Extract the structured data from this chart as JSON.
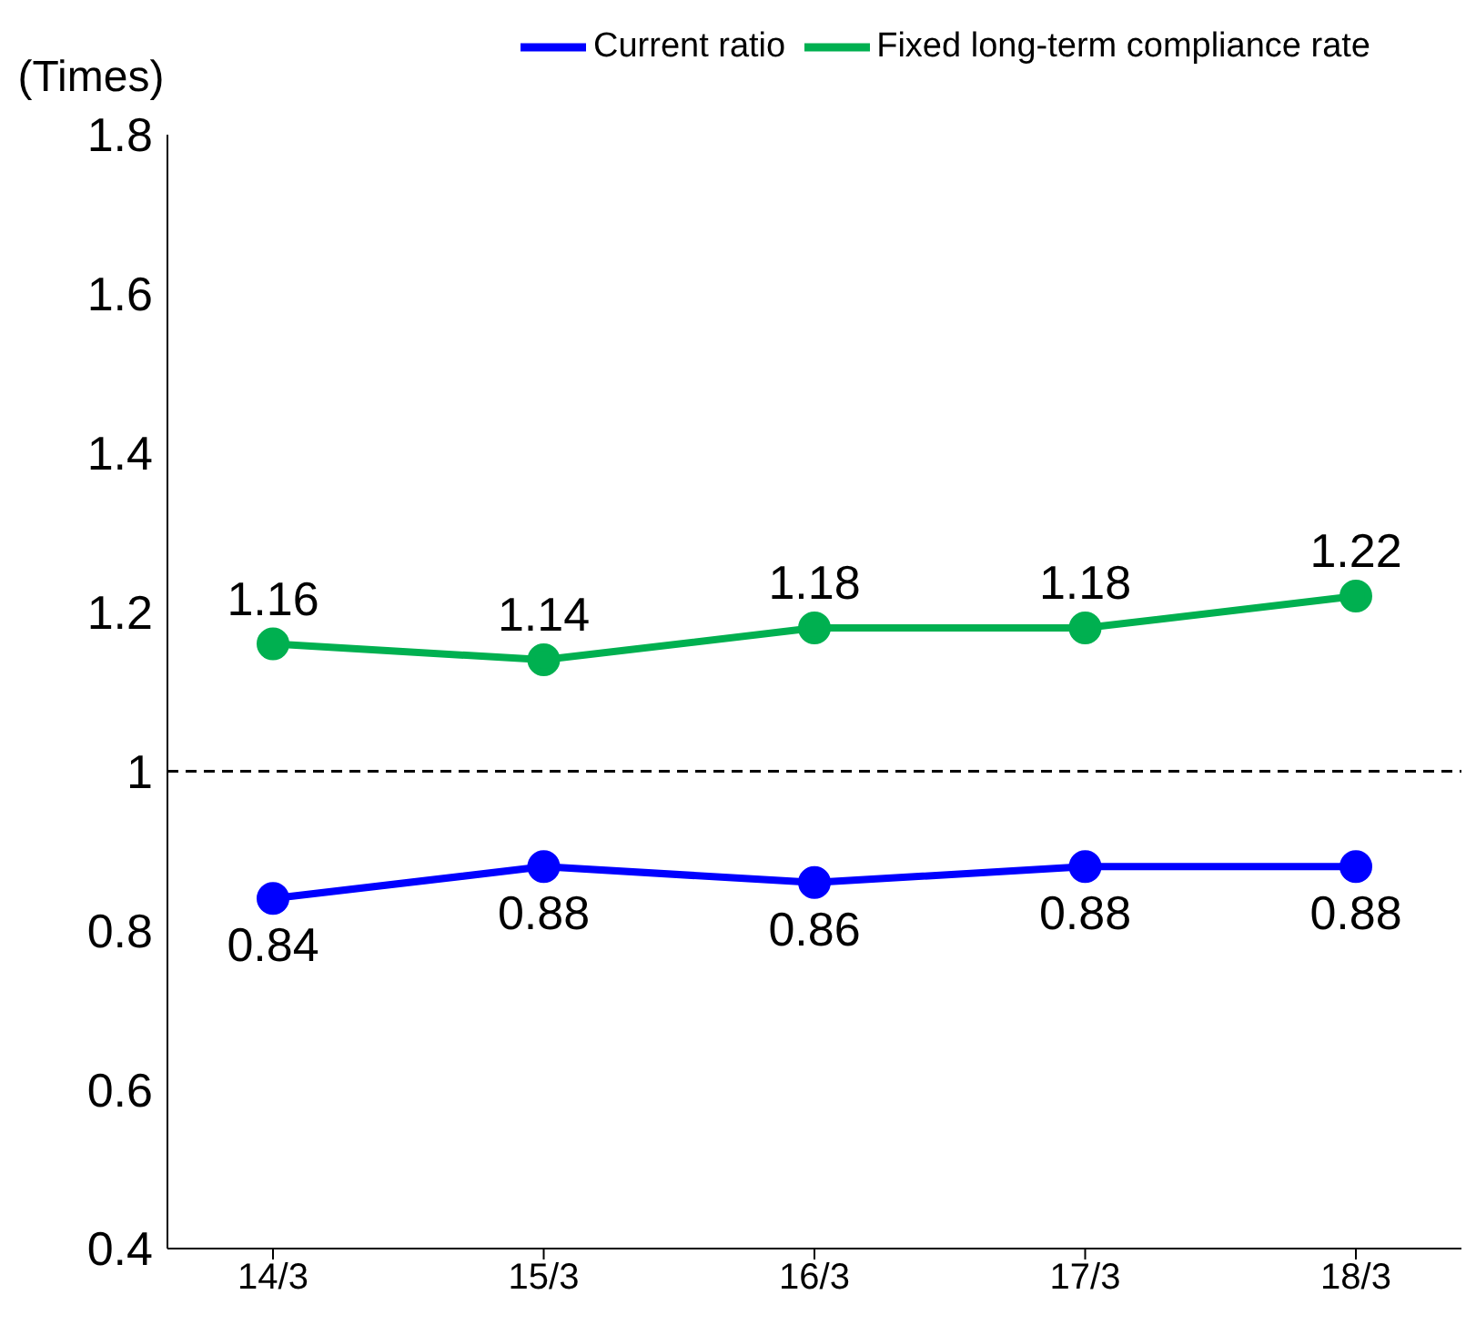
{
  "chart_data": {
    "type": "line",
    "ylabel": "(Times)",
    "categories": [
      "14/3",
      "15/3",
      "16/3",
      "17/3",
      "18/3"
    ],
    "series": [
      {
        "name": "Current ratio",
        "color": "#0000ff",
        "values": [
          0.84,
          0.88,
          0.86,
          0.88,
          0.88
        ]
      },
      {
        "name": "Fixed long-term compliance rate",
        "color": "#00b050",
        "values": [
          1.16,
          1.14,
          1.18,
          1.18,
          1.22
        ]
      }
    ],
    "ylim": [
      0.4,
      1.8
    ],
    "yticks": [
      0.4,
      0.6,
      0.8,
      1,
      1.2,
      1.4,
      1.6,
      1.8
    ],
    "ref_lines": [
      {
        "axis": "y",
        "value": 1,
        "label": null,
        "color": "#000000",
        "line_style": "dashed"
      }
    ],
    "data_labels": true,
    "legend": "top right",
    "marker": "circle",
    "line_style": "solid",
    "grid": false
  }
}
